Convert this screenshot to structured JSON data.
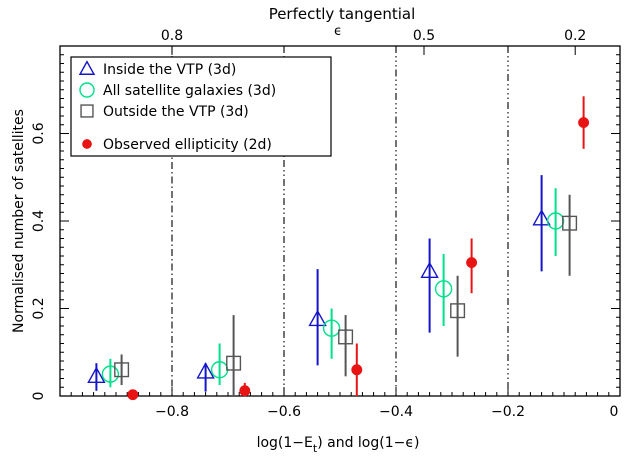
{
  "chart_data": {
    "type": "scatter",
    "top_title": "Perfectly tangential",
    "top_axis_label": "ϵ",
    "top_ticks": [
      {
        "value": -0.8,
        "label": "0.8"
      },
      {
        "value": -0.35,
        "label": "0.5"
      },
      {
        "value": -0.08,
        "label": "0.2"
      }
    ],
    "xlabel": "log(1−E",
    "xlabel_sub": "t",
    "xlabel_rest": ")   and   log(1−ϵ)",
    "ylabel": "Normalised number of satellites",
    "xlim": [
      -1.0,
      0.0
    ],
    "ylim": [
      0,
      0.8
    ],
    "x_ticks": [
      "−0.8",
      "−0.6",
      "−0.4",
      "−0.2",
      "0"
    ],
    "x_tick_values": [
      -0.8,
      -0.6,
      -0.4,
      -0.2,
      0.0
    ],
    "y_ticks": [
      "0",
      "0.2",
      "0.4",
      "0.6"
    ],
    "y_tick_values": [
      0,
      0.2,
      0.4,
      0.6
    ],
    "vertical_lines": [
      -0.8,
      -0.6,
      -0.4,
      -0.2
    ],
    "legend_position": "top-left",
    "series": [
      {
        "name": "Inside the VTP (3d)",
        "marker": "triangle",
        "color": "#1414c8",
        "x": [
          -0.935,
          -0.74,
          -0.54,
          -0.34,
          -0.14
        ],
        "y": [
          0.045,
          0.055,
          0.175,
          0.285,
          0.405
        ],
        "err_low": [
          0.012,
          0.01,
          0.07,
          0.145,
          0.285
        ],
        "err_high": [
          0.075,
          0.075,
          0.29,
          0.36,
          0.505
        ]
      },
      {
        "name": "All satellite galaxies (3d)",
        "marker": "circle",
        "color": "#00e08a",
        "x": [
          -0.91,
          -0.715,
          -0.515,
          -0.315,
          -0.115
        ],
        "y": [
          0.05,
          0.06,
          0.155,
          0.245,
          0.4
        ],
        "err_low": [
          0.02,
          0.025,
          0.085,
          0.16,
          0.32
        ],
        "err_high": [
          0.085,
          0.12,
          0.2,
          0.325,
          0.475
        ]
      },
      {
        "name": "Outside the VTP (3d)",
        "marker": "square",
        "color": "#555555",
        "x": [
          -0.89,
          -0.69,
          -0.49,
          -0.29,
          -0.09
        ],
        "y": [
          0.06,
          0.075,
          0.135,
          0.195,
          0.395
        ],
        "err_low": [
          0.025,
          0.0,
          0.045,
          0.09,
          0.275
        ],
        "err_high": [
          0.095,
          0.185,
          0.185,
          0.275,
          0.46
        ]
      },
      {
        "name": "Observed ellipticity (2d)",
        "marker": "filled-circle",
        "color": "#e81414",
        "x": [
          -0.87,
          -0.67,
          -0.47,
          -0.265,
          -0.065
        ],
        "y": [
          0.003,
          0.012,
          0.06,
          0.305,
          0.625
        ],
        "err_low": [
          0.0,
          0.0,
          0.0,
          0.235,
          0.565
        ],
        "err_high": [
          0.0,
          0.03,
          0.12,
          0.36,
          0.685
        ]
      }
    ]
  }
}
